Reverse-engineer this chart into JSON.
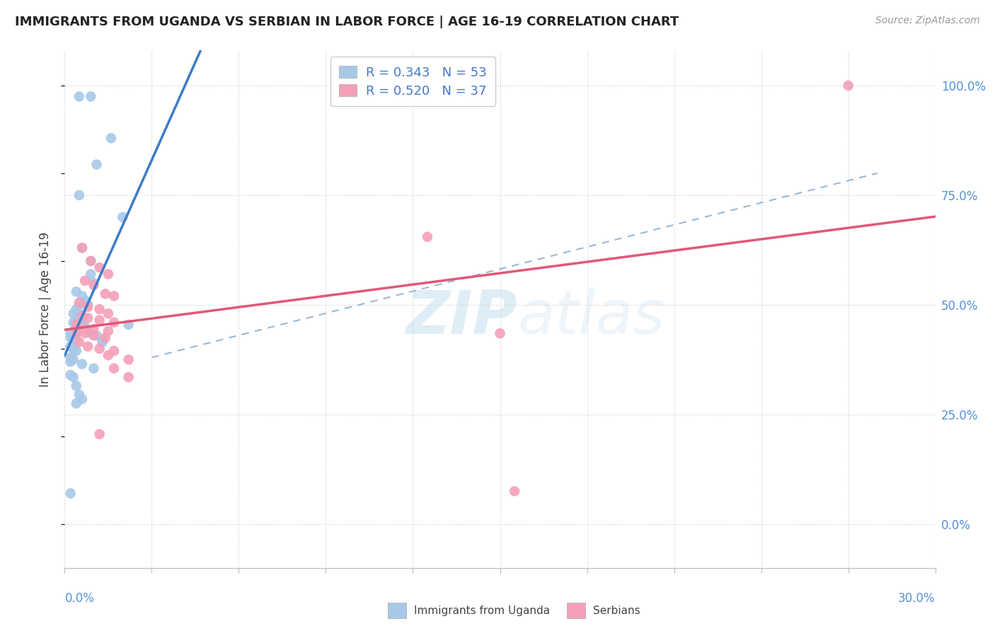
{
  "title": "IMMIGRANTS FROM UGANDA VS SERBIAN IN LABOR FORCE | AGE 16-19 CORRELATION CHART",
  "source": "Source: ZipAtlas.com",
  "ylabel": "In Labor Force | Age 16-19",
  "right_yticks": [
    0.0,
    0.25,
    0.5,
    0.75,
    1.0
  ],
  "right_yticklabels": [
    "0.0%",
    "25.0%",
    "50.0%",
    "75.0%",
    "100.0%"
  ],
  "xlim": [
    0.0,
    0.3
  ],
  "ylim": [
    -0.1,
    1.08
  ],
  "uganda_color": "#a8c8e8",
  "serbia_color": "#f4a0b8",
  "uganda_R": 0.343,
  "uganda_N": 53,
  "serbia_R": 0.52,
  "serbia_N": 37,
  "legend_label_uganda": "Immigrants from Uganda",
  "legend_label_serbia": "Serbians",
  "watermark_zip": "ZIP",
  "watermark_atlas": "atlas",
  "uganda_scatter_x": [
    0.005,
    0.009,
    0.011,
    0.016,
    0.005,
    0.02,
    0.006,
    0.009,
    0.009,
    0.01,
    0.004,
    0.006,
    0.007,
    0.005,
    0.008,
    0.004,
    0.003,
    0.005,
    0.006,
    0.004,
    0.003,
    0.004,
    0.005,
    0.006,
    0.007,
    0.003,
    0.004,
    0.002,
    0.003,
    0.004,
    0.009,
    0.011,
    0.002,
    0.003,
    0.004,
    0.013,
    0.002,
    0.003,
    0.004,
    0.002,
    0.003,
    0.002,
    0.006,
    0.01,
    0.002,
    0.003,
    0.004,
    0.005,
    0.006,
    0.004,
    0.013,
    0.022,
    0.002
  ],
  "uganda_scatter_y": [
    0.975,
    0.975,
    0.82,
    0.88,
    0.75,
    0.7,
    0.63,
    0.6,
    0.57,
    0.55,
    0.53,
    0.52,
    0.51,
    0.5,
    0.5,
    0.49,
    0.48,
    0.48,
    0.47,
    0.47,
    0.46,
    0.46,
    0.46,
    0.455,
    0.45,
    0.44,
    0.44,
    0.435,
    0.435,
    0.435,
    0.435,
    0.43,
    0.425,
    0.42,
    0.415,
    0.415,
    0.405,
    0.4,
    0.395,
    0.38,
    0.375,
    0.37,
    0.365,
    0.355,
    0.34,
    0.335,
    0.315,
    0.295,
    0.285,
    0.275,
    0.42,
    0.455,
    0.07
  ],
  "serbia_scatter_x": [
    0.27,
    0.006,
    0.009,
    0.012,
    0.015,
    0.007,
    0.01,
    0.014,
    0.017,
    0.005,
    0.008,
    0.012,
    0.015,
    0.006,
    0.008,
    0.012,
    0.017,
    0.004,
    0.007,
    0.01,
    0.015,
    0.004,
    0.007,
    0.01,
    0.014,
    0.005,
    0.008,
    0.012,
    0.017,
    0.015,
    0.022,
    0.017,
    0.022,
    0.012,
    0.15,
    0.125,
    0.155
  ],
  "serbia_scatter_y": [
    1.0,
    0.63,
    0.6,
    0.585,
    0.57,
    0.555,
    0.545,
    0.525,
    0.52,
    0.505,
    0.495,
    0.49,
    0.48,
    0.475,
    0.47,
    0.465,
    0.46,
    0.455,
    0.445,
    0.445,
    0.44,
    0.435,
    0.435,
    0.43,
    0.425,
    0.415,
    0.405,
    0.4,
    0.395,
    0.385,
    0.375,
    0.355,
    0.335,
    0.205,
    0.435,
    0.655,
    0.075
  ],
  "uganda_trend_x": [
    0.0,
    0.155
  ],
  "serbia_trend_x": [
    0.0,
    0.3
  ],
  "ref_line_x": [
    0.03,
    0.28
  ],
  "ref_line_y": [
    0.38,
    0.8
  ]
}
